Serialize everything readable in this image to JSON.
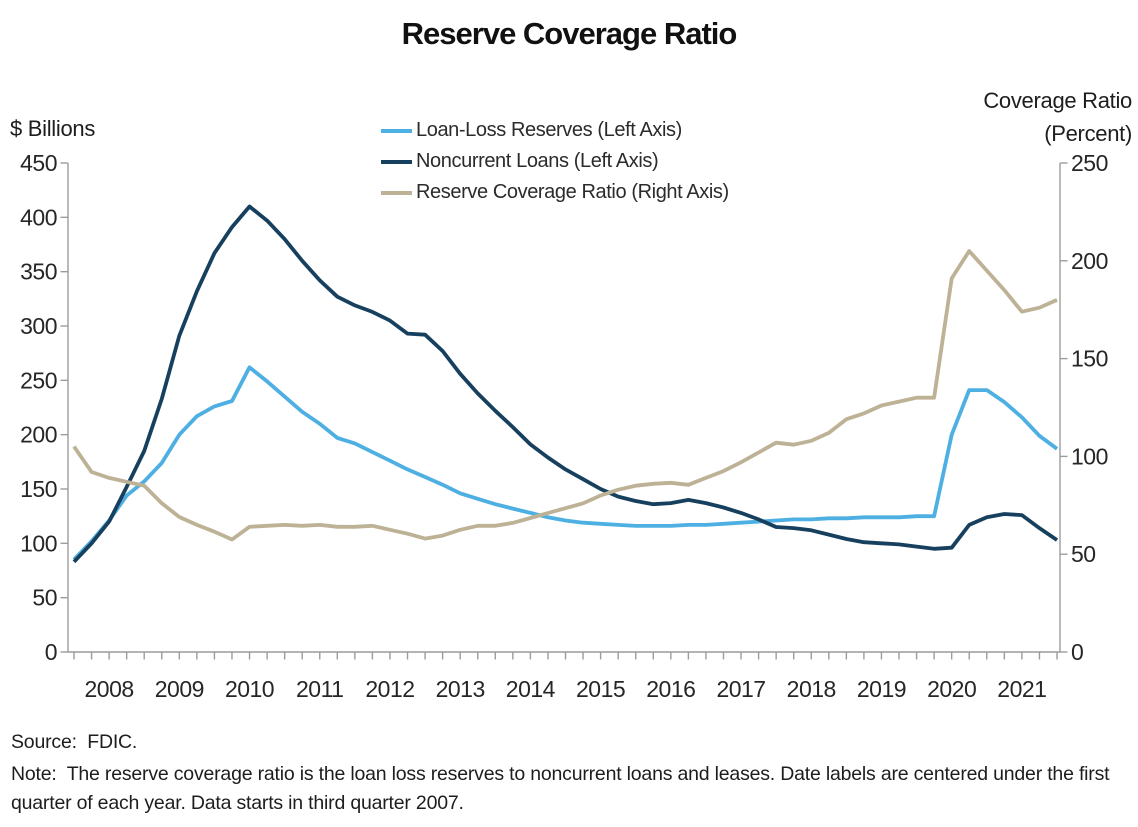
{
  "title": "Reserve Coverage Ratio",
  "left_axis": {
    "label": "$ Billions",
    "ticks": [
      0,
      50,
      100,
      150,
      200,
      250,
      300,
      350,
      400,
      450
    ]
  },
  "right_axis": {
    "label_line1": "Coverage Ratio",
    "label_line2": "(Percent)",
    "ticks": [
      0,
      50,
      100,
      150,
      200,
      250
    ]
  },
  "x_axis": {
    "year_labels": [
      "2008",
      "2009",
      "2010",
      "2011",
      "2012",
      "2013",
      "2014",
      "2015",
      "2016",
      "2017",
      "2018",
      "2019",
      "2020",
      "2021"
    ]
  },
  "legend": [
    {
      "label": "Loan-Loss Reserves (Left Axis)",
      "color": "#4dafe2"
    },
    {
      "label": "Noncurrent Loans (Left Axis)",
      "color": "#17405f"
    },
    {
      "label": "Reserve Coverage Ratio (Right Axis)",
      "color": "#bdb296"
    }
  ],
  "source": "Source:  FDIC.",
  "note": "Note:  The reserve coverage ratio is the loan loss reserves to noncurrent loans and leases. Date labels are centered under the first quarter of each year. Data starts in third quarter 2007.",
  "colors": {
    "axis": "#9c9c9c",
    "tick_text": "#262626",
    "loan_loss_reserves": "#4dafe2",
    "noncurrent_loans": "#17405f",
    "reserve_coverage_ratio": "#bdb296"
  },
  "chart_data": {
    "type": "line",
    "title": "Reserve Coverage Ratio",
    "frequency": "quarterly",
    "x_start": "2007 Q3",
    "x_end": "2021 Q3",
    "left_ylabel": "$ Billions",
    "right_ylabel": "Coverage Ratio (Percent)",
    "left_ylim": [
      0,
      450
    ],
    "right_ylim": [
      0,
      250
    ],
    "grid": false,
    "legend_position": "top-center",
    "x": [
      "2007 Q3",
      "2007 Q4",
      "2008 Q1",
      "2008 Q2",
      "2008 Q3",
      "2008 Q4",
      "2009 Q1",
      "2009 Q2",
      "2009 Q3",
      "2009 Q4",
      "2010 Q1",
      "2010 Q2",
      "2010 Q3",
      "2010 Q4",
      "2011 Q1",
      "2011 Q2",
      "2011 Q3",
      "2011 Q4",
      "2012 Q1",
      "2012 Q2",
      "2012 Q3",
      "2012 Q4",
      "2013 Q1",
      "2013 Q2",
      "2013 Q3",
      "2013 Q4",
      "2014 Q1",
      "2014 Q2",
      "2014 Q3",
      "2014 Q4",
      "2015 Q1",
      "2015 Q2",
      "2015 Q3",
      "2015 Q4",
      "2016 Q1",
      "2016 Q2",
      "2016 Q3",
      "2016 Q4",
      "2017 Q1",
      "2017 Q2",
      "2017 Q3",
      "2017 Q4",
      "2018 Q1",
      "2018 Q2",
      "2018 Q3",
      "2018 Q4",
      "2019 Q1",
      "2019 Q2",
      "2019 Q3",
      "2019 Q4",
      "2020 Q1",
      "2020 Q2",
      "2020 Q3",
      "2020 Q4",
      "2021 Q1",
      "2021 Q2",
      "2021 Q3"
    ],
    "series": [
      {
        "name": "Loan-Loss Reserves (Left Axis)",
        "axis": "left",
        "units": "$ billions",
        "color": "#4dafe2",
        "values": [
          85,
          102,
          121,
          144,
          157,
          174,
          200,
          217,
          226,
          231,
          262,
          249,
          235,
          221,
          210,
          197,
          192,
          184,
          176,
          168,
          161,
          154,
          146,
          141,
          136,
          132,
          128,
          124,
          121,
          119,
          118,
          117,
          116,
          116,
          116,
          117,
          117,
          118,
          119,
          120,
          121,
          122,
          122,
          123,
          123,
          124,
          124,
          124,
          125,
          125,
          200,
          241,
          241,
          230,
          216,
          199,
          187
        ]
      },
      {
        "name": "Noncurrent Loans (Left Axis)",
        "axis": "left",
        "units": "$ billions",
        "color": "#17405f",
        "values": [
          83,
          100,
          120,
          152,
          185,
          233,
          291,
          332,
          367,
          391,
          410,
          397,
          380,
          360,
          342,
          327,
          319,
          313,
          305,
          293,
          292,
          277,
          256,
          238,
          222,
          207,
          191,
          179,
          168,
          159,
          150,
          143,
          139,
          136,
          137,
          140,
          137,
          133,
          128,
          122,
          115,
          114,
          112,
          108,
          104,
          101,
          100,
          99,
          97,
          95,
          96,
          117,
          124,
          127,
          126,
          114,
          103
        ]
      },
      {
        "name": "Reserve Coverage Ratio (Right Axis)",
        "axis": "right",
        "units": "percent",
        "color": "#bdb296",
        "values": [
          105,
          92,
          89,
          87,
          85,
          76,
          69,
          65,
          61.5,
          57.5,
          64,
          64.5,
          65,
          64.5,
          65,
          64,
          64,
          64.5,
          62.5,
          60.5,
          58,
          59.5,
          62.5,
          64.5,
          64.5,
          66,
          68.5,
          71,
          73.5,
          76,
          80,
          83,
          85,
          86,
          86.5,
          85.5,
          89,
          92.5,
          97,
          102,
          107,
          106,
          108,
          112,
          119,
          122,
          126,
          128,
          130,
          130,
          191,
          205,
          195,
          185,
          174,
          176,
          180
        ]
      }
    ]
  }
}
